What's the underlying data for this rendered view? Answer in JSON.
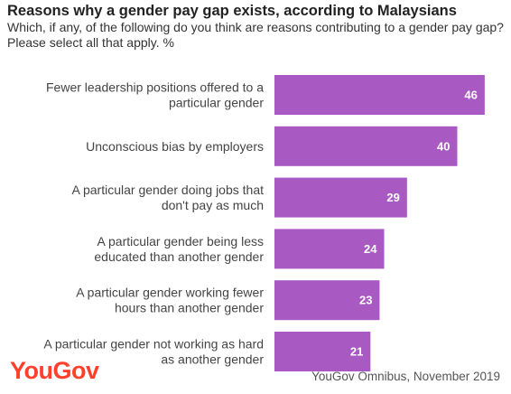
{
  "header": {
    "title": "Reasons why a gender pay gap exists, according to Malaysians",
    "subtitle": "Which, if any, of the following do you think are reasons contributing to a gender pay gap? Please select all that apply. %"
  },
  "footer": {
    "logo": "YouGov",
    "source": "YouGov Omnibus, November 2019"
  },
  "colors": {
    "bar": "#a95ac2",
    "logo": "#ff412c"
  },
  "chart_data": {
    "type": "bar",
    "orientation": "horizontal",
    "categories": [
      [
        "Fewer leadership positions offered to a",
        "particular gender"
      ],
      [
        "Unconscious bias by employers"
      ],
      [
        "A particular gender doing jobs that",
        "don't pay as much"
      ],
      [
        "A particular gender being less",
        "educated than another gender"
      ],
      [
        "A particular gender working fewer",
        "hours than another gender"
      ],
      [
        "A particular gender not working as hard",
        "as another gender"
      ]
    ],
    "values": [
      46,
      40,
      29,
      24,
      23,
      21
    ],
    "xlim": [
      0,
      48
    ],
    "grid": false,
    "legend": "none"
  }
}
